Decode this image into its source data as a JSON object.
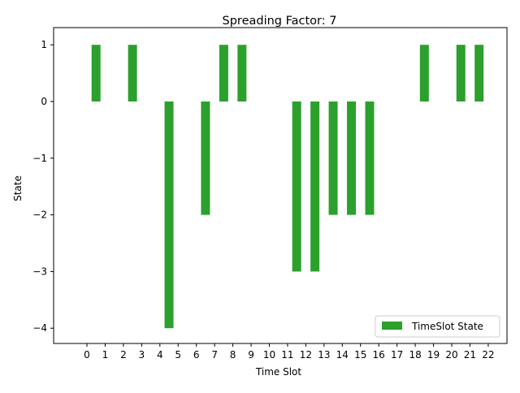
{
  "chart_data": {
    "type": "bar",
    "title": "Spreading Factor: 7",
    "xlabel": "Time Slot",
    "ylabel": "State",
    "categories": [
      "0",
      "1",
      "2",
      "3",
      "4",
      "5",
      "6",
      "7",
      "8",
      "9",
      "10",
      "11",
      "12",
      "13",
      "14",
      "15",
      "16",
      "17",
      "18",
      "19",
      "20",
      "21",
      "22"
    ],
    "x_tick_labels": [
      "0",
      "1",
      "2",
      "3",
      "4",
      "5",
      "6",
      "7",
      "8",
      "9",
      "10",
      "11",
      "12",
      "13",
      "14",
      "15",
      "16",
      "17",
      "18",
      "19",
      "20",
      "21",
      "22"
    ],
    "y_tick_labels": [
      "1",
      "0",
      "−1",
      "−2",
      "−3",
      "−4"
    ],
    "y_ticks": [
      1,
      0,
      -1,
      -2,
      -3,
      -4
    ],
    "ylim": [
      -4.3,
      1.3
    ],
    "series": [
      {
        "name": "TimeSlot State",
        "color": "#2ca02c",
        "values": [
          1,
          0,
          1,
          0,
          -4,
          0,
          -2,
          1,
          1,
          0,
          0,
          -3,
          -3,
          -2,
          -2,
          -2,
          0,
          0,
          1,
          0,
          1,
          1,
          0
        ]
      }
    ],
    "legend": {
      "position": "lower-right",
      "label": "TimeSlot State"
    },
    "grid": false
  }
}
